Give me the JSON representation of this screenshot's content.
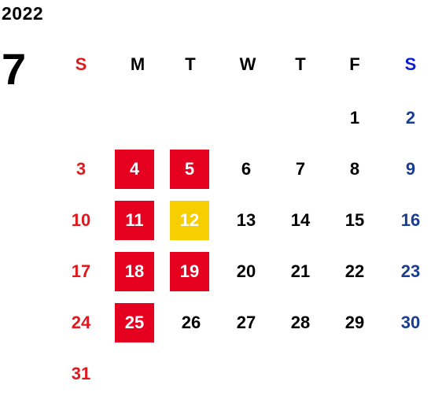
{
  "year": "2022",
  "month": "7",
  "weekdays": [
    "S",
    "M",
    "T",
    "W",
    "T",
    "F",
    "S"
  ],
  "weeks": [
    [
      "",
      "",
      "",
      "",
      "",
      "1",
      "2"
    ],
    [
      "3",
      "4",
      "5",
      "6",
      "7",
      "8",
      "9"
    ],
    [
      "10",
      "11",
      "12",
      "13",
      "14",
      "15",
      "16"
    ],
    [
      "17",
      "18",
      "19",
      "20",
      "21",
      "22",
      "23"
    ],
    [
      "24",
      "25",
      "26",
      "27",
      "28",
      "29",
      "30"
    ],
    [
      "31",
      "",
      "",
      "",
      "",
      "",
      ""
    ]
  ],
  "highlighted_red": [
    "4",
    "5",
    "11",
    "18",
    "19",
    "25"
  ],
  "highlighted_yellow": [
    "12"
  ],
  "colors": {
    "sunday": "#e0191e",
    "saturday": "#1a3d8f",
    "saturday_header": "#0a1bd6",
    "highlight_red": "#e60020",
    "highlight_yellow": "#f7cf00"
  }
}
